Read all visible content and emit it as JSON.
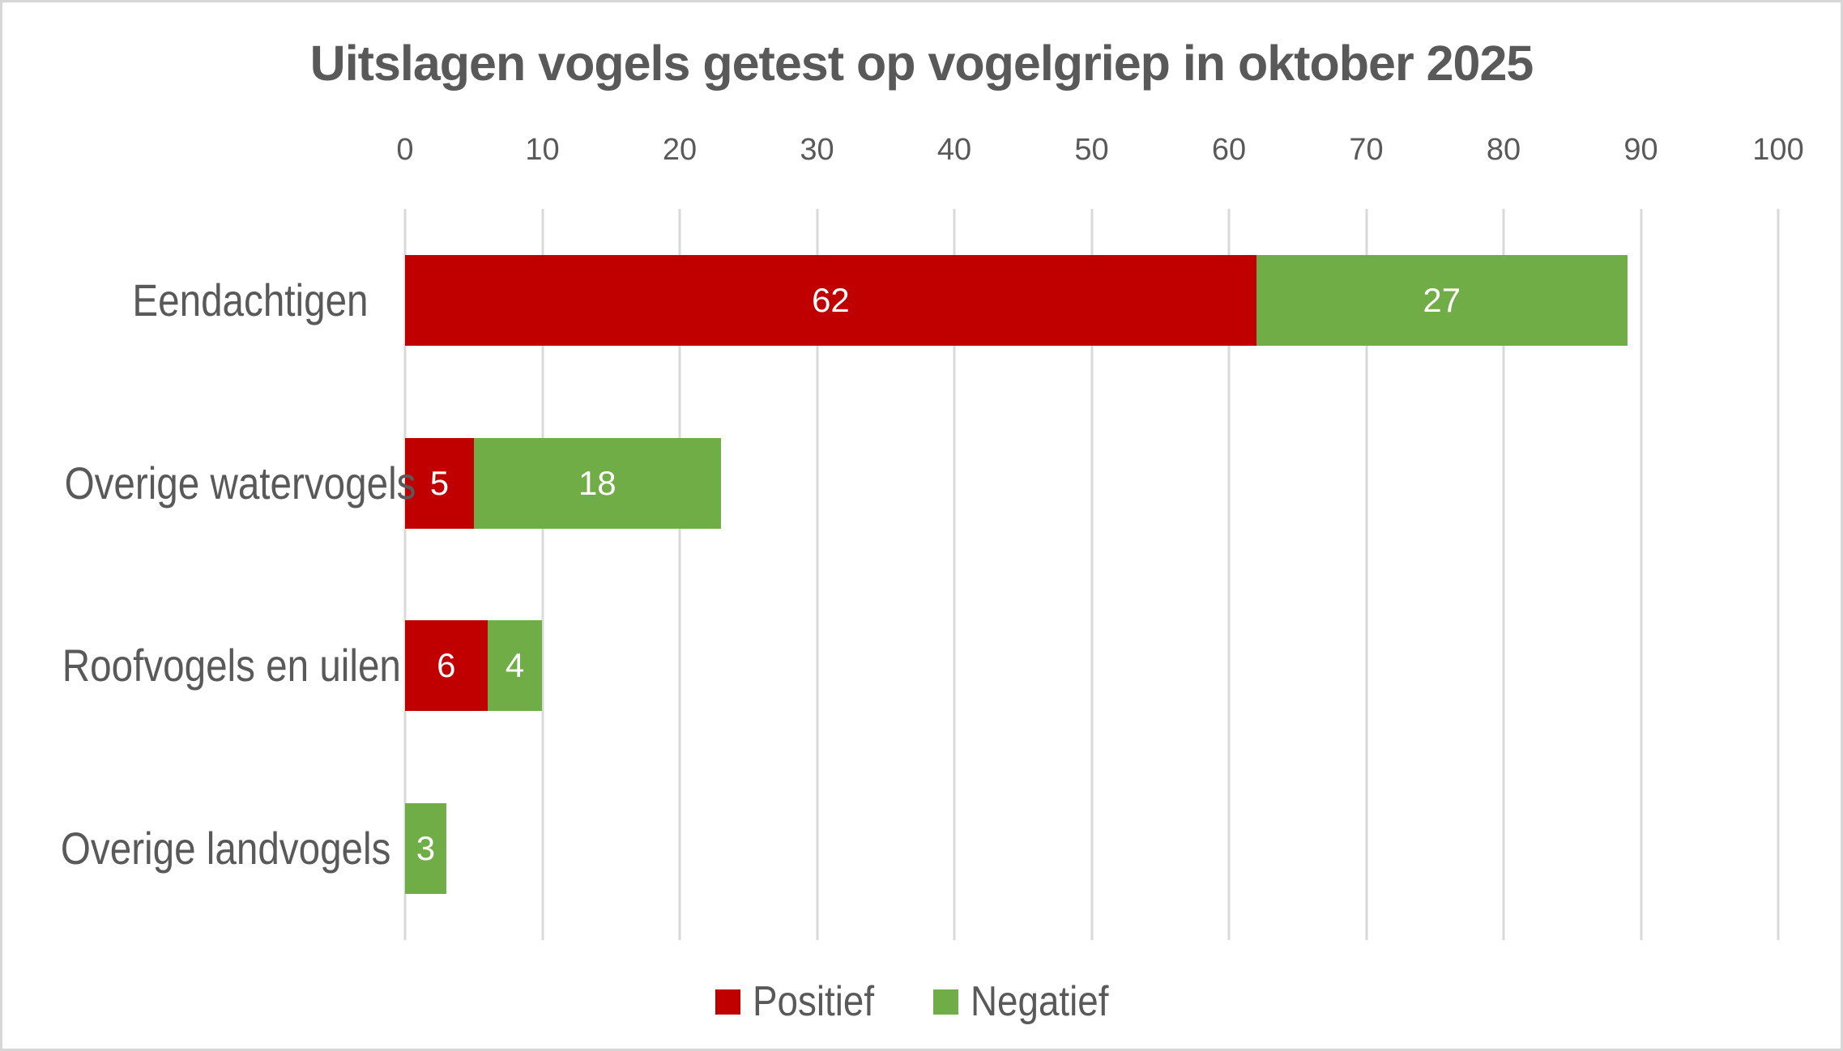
{
  "chart_data": {
    "type": "bar",
    "orientation": "horizontal",
    "stacked": true,
    "title": "Uitslagen vogels getest op vogelgriep in oktober 2025",
    "categories": [
      "Eendachtigen",
      "Overige watervogels",
      "Roofvogels en uilen",
      "Overige landvogels"
    ],
    "series": [
      {
        "name": "Positief",
        "color": "#C00000",
        "values": [
          62,
          5,
          6,
          0
        ]
      },
      {
        "name": "Negatief",
        "color": "#70AD47",
        "values": [
          27,
          18,
          4,
          3
        ]
      }
    ],
    "totals": [
      89,
      23,
      10,
      3
    ],
    "x_axis": {
      "min": 0,
      "max": 100,
      "tick_step": 10,
      "tick_labels": [
        "0",
        "10",
        "20",
        "30",
        "40",
        "50",
        "60",
        "70",
        "80",
        "90",
        "100"
      ],
      "position": "top"
    },
    "grid": true,
    "value_labels": {
      "color": "#FFFFFF",
      "hide_zero": true
    },
    "legend": {
      "position": "bottom",
      "entries": [
        "Positief",
        "Negatief"
      ]
    }
  },
  "colors": {
    "positief": "#C00000",
    "negatief": "#70AD47",
    "gridline": "#D9D9D9",
    "text": "#595959",
    "value_text": "#FFFFFF",
    "background": "#FFFFFF",
    "frame_border": "#D7D7D7"
  }
}
